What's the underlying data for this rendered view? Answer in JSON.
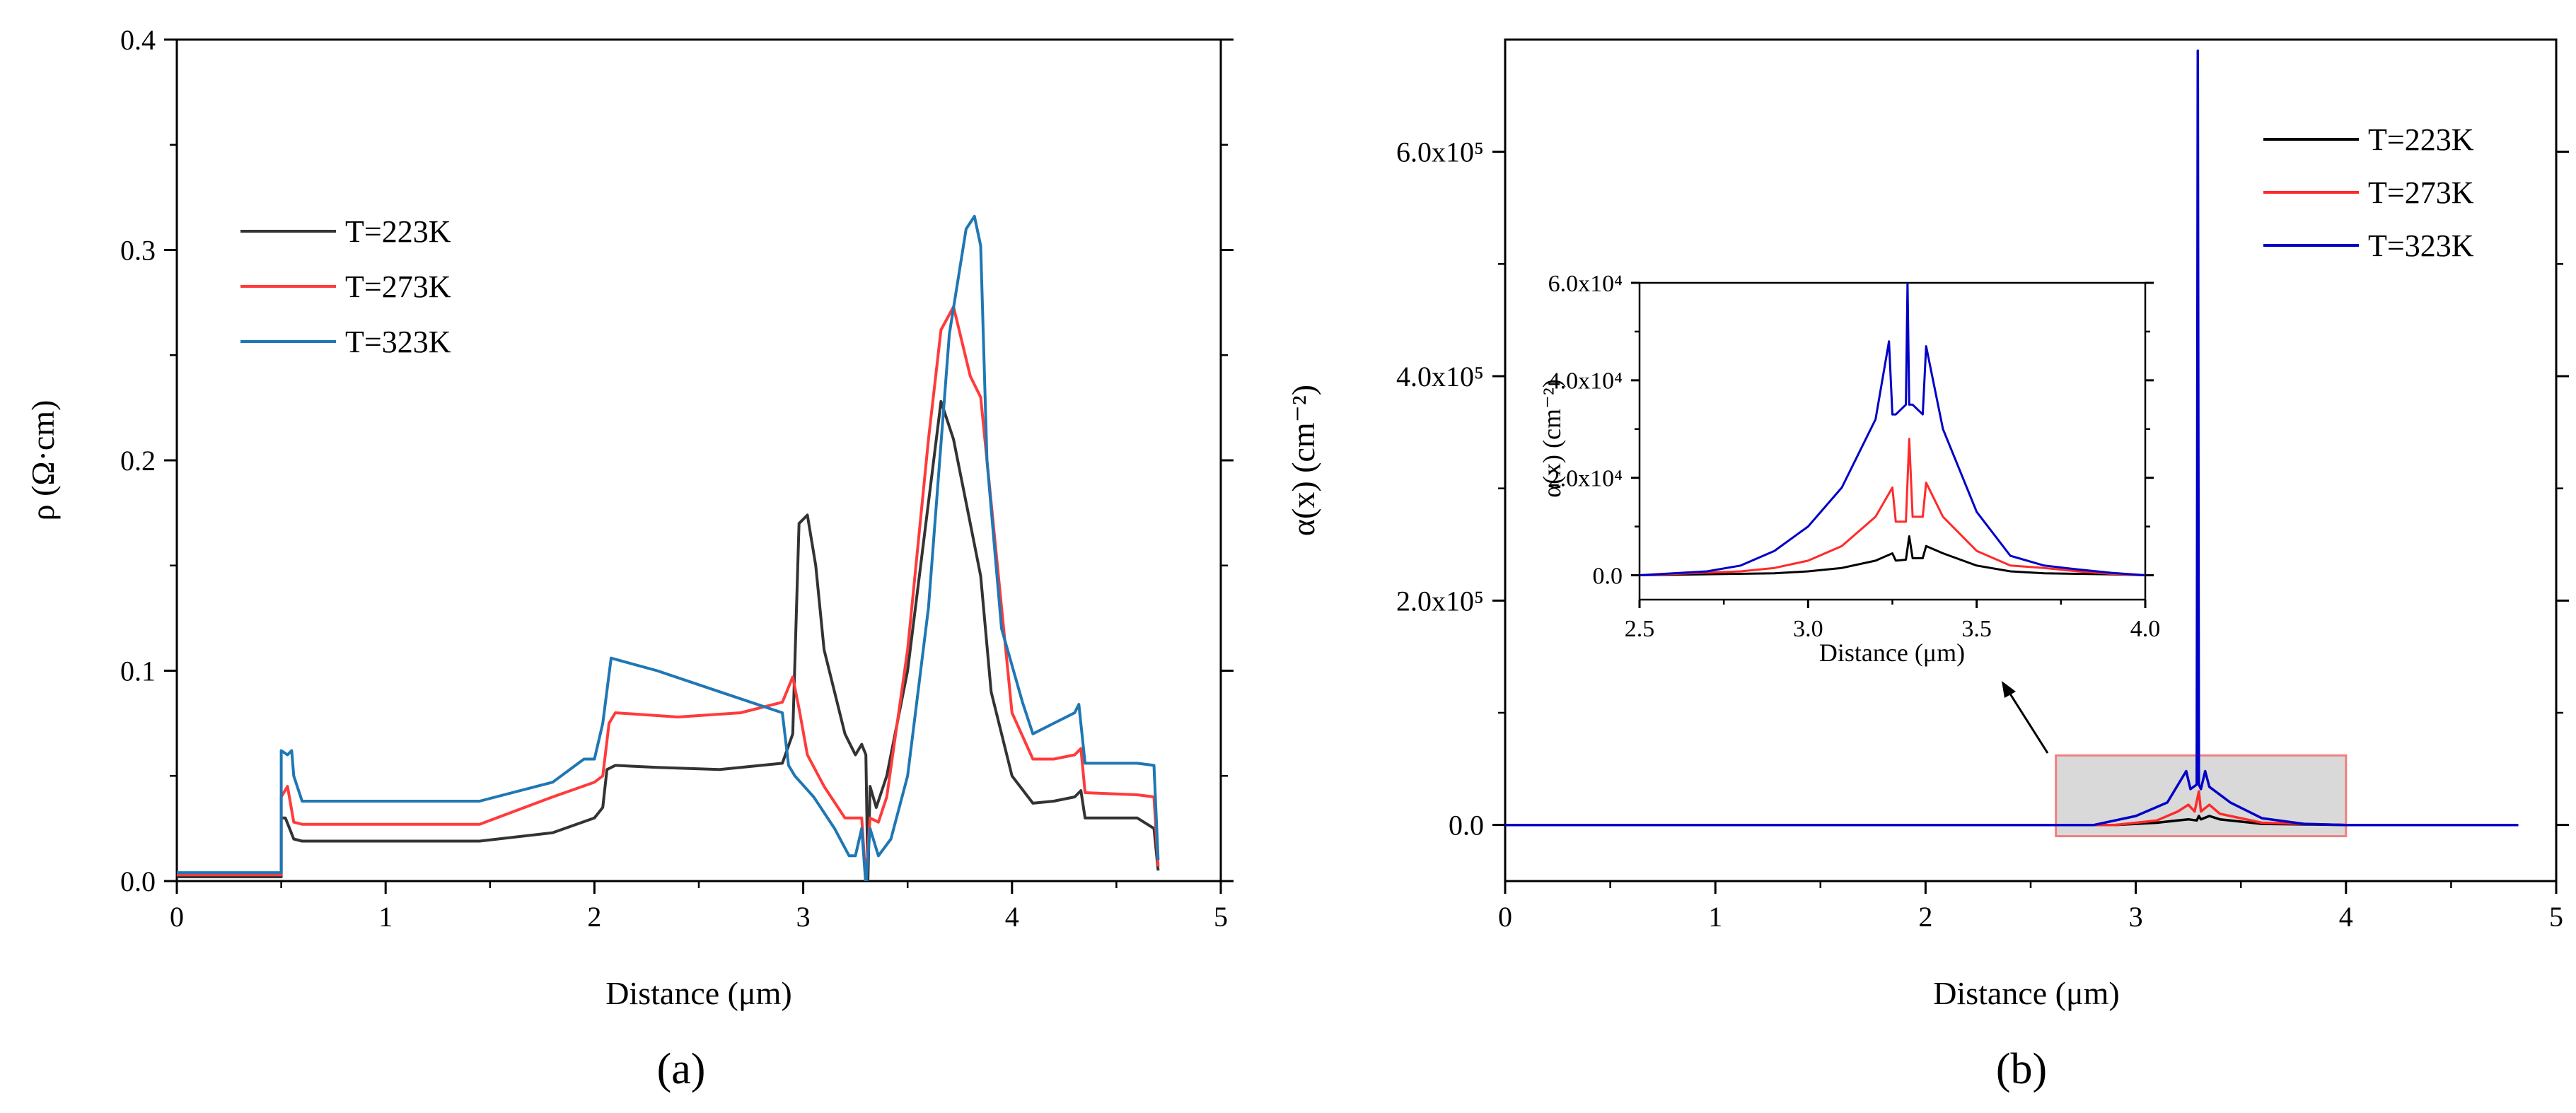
{
  "chart_data": [
    {
      "type": "line",
      "panel_label": "(a)",
      "xlabel": "Distance (μm)",
      "ylabel": "ρ (Ω·cm)",
      "xlim": [
        0,
        5
      ],
      "ylim": [
        0,
        0.4
      ],
      "xticks": [
        "0",
        "1",
        "2",
        "3",
        "4",
        "5"
      ],
      "yticks": [
        "0.0",
        "0.1",
        "0.2",
        "0.3",
        "0.4"
      ],
      "legend_position": "upper-left",
      "series": [
        {
          "name": "T=223K",
          "color": "#333333",
          "x": [
            0,
            0.5,
            0.5,
            0.52,
            0.56,
            0.6,
            1.0,
            1.45,
            1.8,
            2.0,
            2.04,
            2.06,
            2.1,
            2.3,
            2.6,
            2.9,
            2.95,
            2.98,
            3.02,
            3.06,
            3.1,
            3.2,
            3.25,
            3.28,
            3.3,
            3.31,
            3.32,
            3.35,
            3.4,
            3.5,
            3.6,
            3.66,
            3.72,
            3.8,
            3.85,
            3.9,
            4.0,
            4.1,
            4.2,
            4.3,
            4.33,
            4.35,
            4.6,
            4.68,
            4.7
          ],
          "y": [
            0.002,
            0.002,
            0.03,
            0.03,
            0.02,
            0.019,
            0.019,
            0.019,
            0.023,
            0.03,
            0.035,
            0.053,
            0.055,
            0.054,
            0.053,
            0.056,
            0.07,
            0.17,
            0.174,
            0.15,
            0.11,
            0.07,
            0.06,
            0.065,
            0.06,
            0.0,
            0.045,
            0.035,
            0.05,
            0.1,
            0.18,
            0.228,
            0.21,
            0.17,
            0.145,
            0.09,
            0.05,
            0.037,
            0.038,
            0.04,
            0.043,
            0.03,
            0.03,
            0.025,
            0.005
          ]
        },
        {
          "name": "T=273K",
          "color": "#ff3b3b",
          "x": [
            0,
            0.5,
            0.5,
            0.53,
            0.56,
            0.6,
            1.0,
            1.45,
            1.8,
            2.0,
            2.04,
            2.07,
            2.1,
            2.4,
            2.7,
            2.9,
            2.95,
            2.98,
            3.02,
            3.1,
            3.2,
            3.25,
            3.28,
            3.3,
            3.32,
            3.36,
            3.4,
            3.5,
            3.6,
            3.66,
            3.72,
            3.8,
            3.85,
            3.88,
            4.0,
            4.1,
            4.2,
            4.3,
            4.33,
            4.35,
            4.6,
            4.68,
            4.7
          ],
          "y": [
            0.003,
            0.003,
            0.04,
            0.045,
            0.028,
            0.027,
            0.027,
            0.027,
            0.04,
            0.047,
            0.05,
            0.075,
            0.08,
            0.078,
            0.08,
            0.085,
            0.097,
            0.082,
            0.06,
            0.045,
            0.03,
            0.03,
            0.03,
            0.0,
            0.03,
            0.028,
            0.04,
            0.11,
            0.21,
            0.262,
            0.273,
            0.24,
            0.23,
            0.2,
            0.08,
            0.058,
            0.058,
            0.06,
            0.063,
            0.042,
            0.041,
            0.04,
            0.007
          ]
        },
        {
          "name": "T=323K",
          "color": "#1f77b4",
          "x": [
            0,
            0.5,
            0.5,
            0.53,
            0.55,
            0.56,
            0.6,
            1.0,
            1.45,
            1.8,
            1.95,
            2.0,
            2.04,
            2.08,
            2.3,
            2.6,
            2.9,
            2.93,
            2.96,
            3.05,
            3.15,
            3.22,
            3.25,
            3.28,
            3.3,
            3.32,
            3.36,
            3.42,
            3.5,
            3.6,
            3.7,
            3.78,
            3.82,
            3.85,
            3.88,
            3.95,
            4.05,
            4.1,
            4.2,
            4.3,
            4.32,
            4.35,
            4.6,
            4.68,
            4.7
          ],
          "y": [
            0.004,
            0.004,
            0.062,
            0.06,
            0.062,
            0.05,
            0.038,
            0.038,
            0.038,
            0.047,
            0.058,
            0.058,
            0.075,
            0.106,
            0.1,
            0.09,
            0.08,
            0.055,
            0.05,
            0.04,
            0.025,
            0.012,
            0.012,
            0.025,
            -0.002,
            0.025,
            0.012,
            0.02,
            0.05,
            0.13,
            0.26,
            0.31,
            0.316,
            0.302,
            0.2,
            0.12,
            0.085,
            0.07,
            0.075,
            0.08,
            0.084,
            0.056,
            0.056,
            0.055,
            0.01
          ]
        }
      ]
    },
    {
      "type": "line",
      "panel_label": "(b)",
      "xlabel": "Distance (μm)",
      "ylabel": "α(x) (cm⁻²)",
      "xlim": [
        0,
        5
      ],
      "ylim": [
        -50000,
        700000
      ],
      "xticks": [
        "0",
        "1",
        "2",
        "3",
        "4",
        "5"
      ],
      "yticks": [
        "0.0",
        "2.0x10⁵",
        "4.0x10⁵",
        "6.0x10⁵"
      ],
      "legend_position": "upper-right",
      "highlight_box": {
        "x": [
          2.62,
          4.0
        ],
        "y": [
          -10000,
          62000
        ]
      },
      "series": [
        {
          "name": "T=223K",
          "color": "#000000",
          "x": [
            0,
            2.9,
            3.1,
            3.2,
            3.25,
            3.29,
            3.3,
            3.31,
            3.35,
            3.4,
            3.6,
            4.0,
            4.82
          ],
          "y": [
            0,
            0,
            2000,
            4000,
            5000,
            4000,
            8000,
            5000,
            8000,
            5000,
            1000,
            0,
            0
          ]
        },
        {
          "name": "T=273K",
          "color": "#ff2a2a",
          "x": [
            0,
            2.9,
            3.1,
            3.2,
            3.25,
            3.28,
            3.3,
            3.31,
            3.35,
            3.4,
            3.6,
            4.0,
            4.82
          ],
          "y": [
            0,
            0,
            4000,
            12000,
            18000,
            12000,
            30000,
            12000,
            18000,
            10000,
            2000,
            0,
            0
          ]
        },
        {
          "name": "T=323K",
          "color": "#0000c8",
          "x": [
            0,
            2.8,
            3.0,
            3.15,
            3.24,
            3.26,
            3.29,
            3.295,
            3.3,
            3.31,
            3.33,
            3.35,
            3.45,
            3.6,
            3.8,
            4.0,
            4.82
          ],
          "y": [
            0,
            0,
            8000,
            20000,
            48000,
            32000,
            36000,
            690000,
            36000,
            32000,
            48000,
            34000,
            20000,
            6000,
            1000,
            0,
            0
          ]
        }
      ],
      "inset": {
        "xlabel": "Distance (μm)",
        "ylabel": "α(x) (cm⁻²)",
        "xlim": [
          2.5,
          4.0
        ],
        "ylim": [
          -5000,
          60000
        ],
        "xticks": [
          "2.5",
          "3.0",
          "3.5",
          "4.0"
        ],
        "yticks": [
          "0.0",
          "2.0x10⁴",
          "4.0x10⁴",
          "6.0x10⁴"
        ],
        "series": [
          {
            "name": "T=223K",
            "color": "#000000",
            "x": [
              2.5,
              2.9,
              3.0,
              3.1,
              3.2,
              3.25,
              3.26,
              3.29,
              3.3,
              3.31,
              3.34,
              3.35,
              3.4,
              3.5,
              3.6,
              3.7,
              3.8,
              3.9,
              4.0
            ],
            "y": [
              0,
              400,
              800,
              1500,
              3000,
              4500,
              3000,
              3200,
              8000,
              3500,
              3500,
              6000,
              4500,
              2000,
              800,
              400,
              300,
              200,
              0
            ]
          },
          {
            "name": "T=273K",
            "color": "#ff2a2a",
            "x": [
              2.5,
              2.8,
              2.9,
              3.0,
              3.1,
              3.2,
              3.25,
              3.26,
              3.29,
              3.3,
              3.31,
              3.34,
              3.35,
              3.4,
              3.5,
              3.6,
              3.7,
              3.8,
              3.9,
              4.0
            ],
            "y": [
              0,
              800,
              1500,
              3000,
              6000,
              12000,
              18000,
              11000,
              11000,
              28000,
              12000,
              12000,
              19000,
              12000,
              5000,
              2000,
              1500,
              800,
              300,
              0
            ]
          },
          {
            "name": "T=323K",
            "color": "#0000c8",
            "x": [
              2.5,
              2.7,
              2.8,
              2.9,
              3.0,
              3.1,
              3.2,
              3.24,
              3.25,
              3.26,
              3.29,
              3.295,
              3.3,
              3.31,
              3.34,
              3.35,
              3.4,
              3.5,
              3.6,
              3.7,
              3.8,
              3.9,
              4.0
            ],
            "y": [
              0,
              800,
              2000,
              5000,
              10000,
              18000,
              32000,
              48000,
              33000,
              33000,
              35000,
              60000,
              35000,
              35000,
              33000,
              47000,
              30000,
              13000,
              4000,
              2000,
              1200,
              500,
              0
            ]
          }
        ]
      }
    }
  ]
}
